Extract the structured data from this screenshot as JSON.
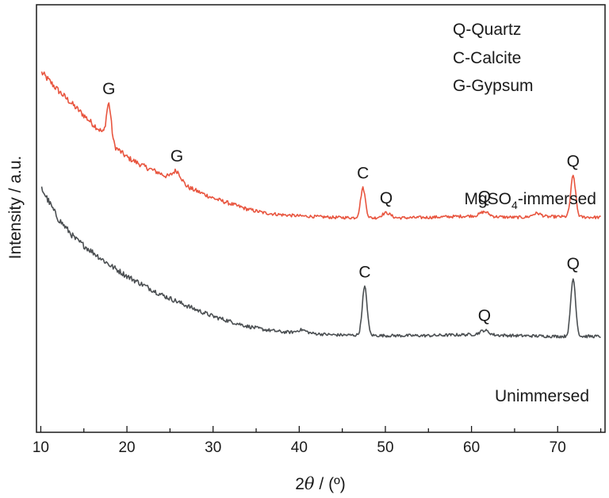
{
  "chart_data": {
    "type": "line",
    "xlabel_prefix": "2",
    "xlabel_symbol": "θ",
    "xlabel_suffix": " / (º)",
    "ylabel": "Intensity / a.u.",
    "xlim": [
      9.5,
      75.5
    ],
    "x_ticks": [
      10,
      20,
      30,
      40,
      50,
      60,
      70
    ],
    "y_ticks_shown": false,
    "grid": false,
    "legend_text": [
      "Q-Quartz",
      "C-Calcite",
      "G-Gypsum"
    ],
    "legend_position": "top-right",
    "series": [
      {
        "name": "MgSO4-immersed",
        "label_main": "MgSO",
        "label_sub": "4",
        "label_tail": "-immersed",
        "color": "#e8553f",
        "baseline": [
          [
            10,
            9.7
          ],
          [
            12,
            9.2
          ],
          [
            14,
            8.75
          ],
          [
            16,
            8.3
          ],
          [
            17,
            8.1
          ],
          [
            18,
            7.75
          ],
          [
            19,
            7.6
          ],
          [
            20,
            7.4
          ],
          [
            22,
            7.15
          ],
          [
            24,
            6.95
          ],
          [
            26,
            6.7
          ],
          [
            28,
            6.5
          ],
          [
            30,
            6.3
          ],
          [
            32,
            6.15
          ],
          [
            34,
            6.0
          ],
          [
            36,
            5.9
          ],
          [
            38,
            5.85
          ],
          [
            40,
            5.82
          ],
          [
            42,
            5.8
          ],
          [
            44,
            5.78
          ],
          [
            50,
            5.76
          ],
          [
            55,
            5.78
          ],
          [
            60,
            5.82
          ],
          [
            65,
            5.78
          ],
          [
            70,
            5.8
          ],
          [
            75,
            5.78
          ]
        ],
        "peaks": [
          {
            "x": 17.9,
            "height": 1.05,
            "label": "G"
          },
          {
            "x": 25.8,
            "height": 0.3,
            "label": "G"
          },
          {
            "x": 47.4,
            "height": 0.8,
            "label": "C"
          },
          {
            "x": 50.1,
            "height": 0.14,
            "label": "Q"
          },
          {
            "x": 61.5,
            "height": 0.12,
            "label": "Q"
          },
          {
            "x": 67.6,
            "height": 0.1,
            "label": ""
          },
          {
            "x": 71.8,
            "height": 1.1,
            "label": "Q"
          }
        ]
      },
      {
        "name": "Unimmersed",
        "label_main": "Unimmersed",
        "color": "#4b4f52",
        "baseline": [
          [
            10,
            6.6
          ],
          [
            12,
            5.75
          ],
          [
            14,
            5.2
          ],
          [
            16,
            4.85
          ],
          [
            18,
            4.5
          ],
          [
            20,
            4.2
          ],
          [
            22,
            3.95
          ],
          [
            24,
            3.7
          ],
          [
            26,
            3.5
          ],
          [
            28,
            3.3
          ],
          [
            30,
            3.12
          ],
          [
            32,
            2.98
          ],
          [
            34,
            2.85
          ],
          [
            36,
            2.76
          ],
          [
            38,
            2.7
          ],
          [
            40,
            2.68
          ],
          [
            42,
            2.65
          ],
          [
            44,
            2.62
          ],
          [
            50,
            2.6
          ],
          [
            55,
            2.6
          ],
          [
            60,
            2.63
          ],
          [
            65,
            2.6
          ],
          [
            70,
            2.58
          ],
          [
            75,
            2.58
          ]
        ],
        "peaks": [
          {
            "x": 40.3,
            "height": 0.08,
            "label": ""
          },
          {
            "x": 47.6,
            "height": 1.3,
            "label": "C"
          },
          {
            "x": 61.5,
            "height": 0.12,
            "label": "Q"
          },
          {
            "x": 71.8,
            "height": 1.55,
            "label": "Q"
          }
        ]
      }
    ]
  }
}
